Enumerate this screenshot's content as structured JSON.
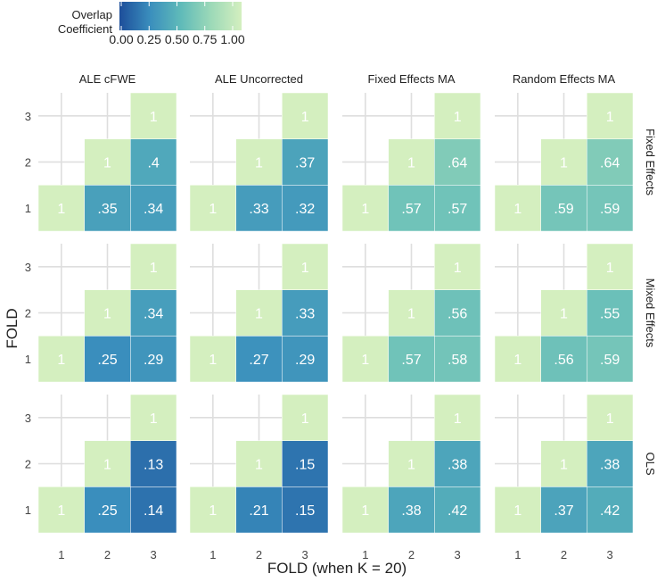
{
  "chart_data": {
    "type": "heatmap",
    "title": "",
    "xlabel": "FOLD (when K = 20)",
    "ylabel": "FOLD",
    "x_ticks": [
      "1",
      "2",
      "3"
    ],
    "y_ticks": [
      "1",
      "2",
      "3"
    ],
    "legend": {
      "title_lines": [
        "Overlap",
        "Coefficient"
      ],
      "min": 0.0,
      "max": 1.0,
      "tick_values": [
        0.0,
        0.25,
        0.5,
        0.75,
        1.0
      ],
      "tick_labels": [
        "0.00",
        "0.25",
        "0.50",
        "0.75",
        "1.00"
      ],
      "colors": [
        "#1d4e9a",
        "#3a8ebd",
        "#5fbab9",
        "#9cd9b8",
        "#d4efbf"
      ],
      "placement": "top-left"
    },
    "column_facets": [
      "ALE cFWE",
      "ALE Uncorrected",
      "Fixed Effects MA",
      "Random Effects MA"
    ],
    "row_facets": [
      "Fixed Effects",
      "Mixed Effects",
      "OLS"
    ],
    "grid": true,
    "panels": [
      [
        {
          "cells": [
            {
              "x": 1,
              "y": 1,
              "value": 1,
              "label": "1"
            },
            {
              "x": 2,
              "y": 1,
              "value": 0.35,
              "label": ".35"
            },
            {
              "x": 3,
              "y": 1,
              "value": 0.34,
              "label": ".34"
            },
            {
              "x": 2,
              "y": 2,
              "value": 1,
              "label": "1"
            },
            {
              "x": 3,
              "y": 2,
              "value": 0.4,
              "label": ".4"
            },
            {
              "x": 3,
              "y": 3,
              "value": 1,
              "label": "1"
            }
          ]
        },
        {
          "cells": [
            {
              "x": 1,
              "y": 1,
              "value": 1,
              "label": "1"
            },
            {
              "x": 2,
              "y": 1,
              "value": 0.33,
              "label": ".33"
            },
            {
              "x": 3,
              "y": 1,
              "value": 0.32,
              "label": ".32"
            },
            {
              "x": 2,
              "y": 2,
              "value": 1,
              "label": "1"
            },
            {
              "x": 3,
              "y": 2,
              "value": 0.37,
              "label": ".37"
            },
            {
              "x": 3,
              "y": 3,
              "value": 1,
              "label": "1"
            }
          ]
        },
        {
          "cells": [
            {
              "x": 1,
              "y": 1,
              "value": 1,
              "label": "1"
            },
            {
              "x": 2,
              "y": 1,
              "value": 0.57,
              "label": ".57"
            },
            {
              "x": 3,
              "y": 1,
              "value": 0.57,
              "label": ".57"
            },
            {
              "x": 2,
              "y": 2,
              "value": 1,
              "label": "1"
            },
            {
              "x": 3,
              "y": 2,
              "value": 0.64,
              "label": ".64"
            },
            {
              "x": 3,
              "y": 3,
              "value": 1,
              "label": "1"
            }
          ]
        },
        {
          "cells": [
            {
              "x": 1,
              "y": 1,
              "value": 1,
              "label": "1"
            },
            {
              "x": 2,
              "y": 1,
              "value": 0.59,
              "label": ".59"
            },
            {
              "x": 3,
              "y": 1,
              "value": 0.59,
              "label": ".59"
            },
            {
              "x": 2,
              "y": 2,
              "value": 1,
              "label": "1"
            },
            {
              "x": 3,
              "y": 2,
              "value": 0.64,
              "label": ".64"
            },
            {
              "x": 3,
              "y": 3,
              "value": 1,
              "label": "1"
            }
          ]
        }
      ],
      [
        {
          "cells": [
            {
              "x": 1,
              "y": 1,
              "value": 1,
              "label": "1"
            },
            {
              "x": 2,
              "y": 1,
              "value": 0.25,
              "label": ".25"
            },
            {
              "x": 3,
              "y": 1,
              "value": 0.29,
              "label": ".29"
            },
            {
              "x": 2,
              "y": 2,
              "value": 1,
              "label": "1"
            },
            {
              "x": 3,
              "y": 2,
              "value": 0.34,
              "label": ".34"
            },
            {
              "x": 3,
              "y": 3,
              "value": 1,
              "label": "1"
            }
          ]
        },
        {
          "cells": [
            {
              "x": 1,
              "y": 1,
              "value": 1,
              "label": "1"
            },
            {
              "x": 2,
              "y": 1,
              "value": 0.27,
              "label": ".27"
            },
            {
              "x": 3,
              "y": 1,
              "value": 0.29,
              "label": ".29"
            },
            {
              "x": 2,
              "y": 2,
              "value": 1,
              "label": "1"
            },
            {
              "x": 3,
              "y": 2,
              "value": 0.33,
              "label": ".33"
            },
            {
              "x": 3,
              "y": 3,
              "value": 1,
              "label": "1"
            }
          ]
        },
        {
          "cells": [
            {
              "x": 1,
              "y": 1,
              "value": 1,
              "label": "1"
            },
            {
              "x": 2,
              "y": 1,
              "value": 0.57,
              "label": ".57"
            },
            {
              "x": 3,
              "y": 1,
              "value": 0.58,
              "label": ".58"
            },
            {
              "x": 2,
              "y": 2,
              "value": 1,
              "label": "1"
            },
            {
              "x": 3,
              "y": 2,
              "value": 0.56,
              "label": ".56"
            },
            {
              "x": 3,
              "y": 3,
              "value": 1,
              "label": "1"
            }
          ]
        },
        {
          "cells": [
            {
              "x": 1,
              "y": 1,
              "value": 1,
              "label": "1"
            },
            {
              "x": 2,
              "y": 1,
              "value": 0.56,
              "label": ".56"
            },
            {
              "x": 3,
              "y": 1,
              "value": 0.59,
              "label": ".59"
            },
            {
              "x": 2,
              "y": 2,
              "value": 1,
              "label": "1"
            },
            {
              "x": 3,
              "y": 2,
              "value": 0.55,
              "label": ".55"
            },
            {
              "x": 3,
              "y": 3,
              "value": 1,
              "label": "1"
            }
          ]
        }
      ],
      [
        {
          "cells": [
            {
              "x": 1,
              "y": 1,
              "value": 1,
              "label": "1"
            },
            {
              "x": 2,
              "y": 1,
              "value": 0.25,
              "label": ".25"
            },
            {
              "x": 3,
              "y": 1,
              "value": 0.14,
              "label": ".14"
            },
            {
              "x": 2,
              "y": 2,
              "value": 1,
              "label": "1"
            },
            {
              "x": 3,
              "y": 2,
              "value": 0.13,
              "label": ".13"
            },
            {
              "x": 3,
              "y": 3,
              "value": 1,
              "label": "1"
            }
          ]
        },
        {
          "cells": [
            {
              "x": 1,
              "y": 1,
              "value": 1,
              "label": "1"
            },
            {
              "x": 2,
              "y": 1,
              "value": 0.21,
              "label": ".21"
            },
            {
              "x": 3,
              "y": 1,
              "value": 0.15,
              "label": ".15"
            },
            {
              "x": 2,
              "y": 2,
              "value": 1,
              "label": "1"
            },
            {
              "x": 3,
              "y": 2,
              "value": 0.15,
              "label": ".15"
            },
            {
              "x": 3,
              "y": 3,
              "value": 1,
              "label": "1"
            }
          ]
        },
        {
          "cells": [
            {
              "x": 1,
              "y": 1,
              "value": 1,
              "label": "1"
            },
            {
              "x": 2,
              "y": 1,
              "value": 0.38,
              "label": ".38"
            },
            {
              "x": 3,
              "y": 1,
              "value": 0.42,
              "label": ".42"
            },
            {
              "x": 2,
              "y": 2,
              "value": 1,
              "label": "1"
            },
            {
              "x": 3,
              "y": 2,
              "value": 0.38,
              "label": ".38"
            },
            {
              "x": 3,
              "y": 3,
              "value": 1,
              "label": "1"
            }
          ]
        },
        {
          "cells": [
            {
              "x": 1,
              "y": 1,
              "value": 1,
              "label": "1"
            },
            {
              "x": 2,
              "y": 1,
              "value": 0.37,
              "label": ".37"
            },
            {
              "x": 3,
              "y": 1,
              "value": 0.42,
              "label": ".42"
            },
            {
              "x": 2,
              "y": 2,
              "value": 1,
              "label": "1"
            },
            {
              "x": 3,
              "y": 2,
              "value": 0.38,
              "label": ".38"
            },
            {
              "x": 3,
              "y": 3,
              "value": 1,
              "label": "1"
            }
          ]
        }
      ]
    ]
  }
}
